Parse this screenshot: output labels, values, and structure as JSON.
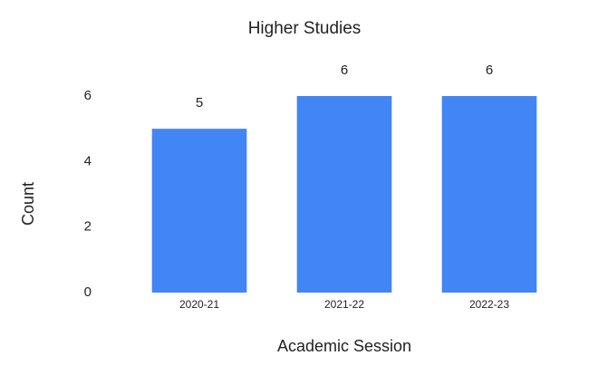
{
  "chart_data": {
    "type": "bar",
    "title": "Higher Studies",
    "xlabel": "Academic Session",
    "ylabel": "Count",
    "categories": [
      "2020-21",
      "2021-22",
      "2022-23"
    ],
    "values": [
      5,
      6,
      6
    ],
    "color": "#4285f4",
    "ylim": [
      0,
      6
    ],
    "yticks": [
      0,
      2,
      4,
      6
    ],
    "grid": false
  }
}
